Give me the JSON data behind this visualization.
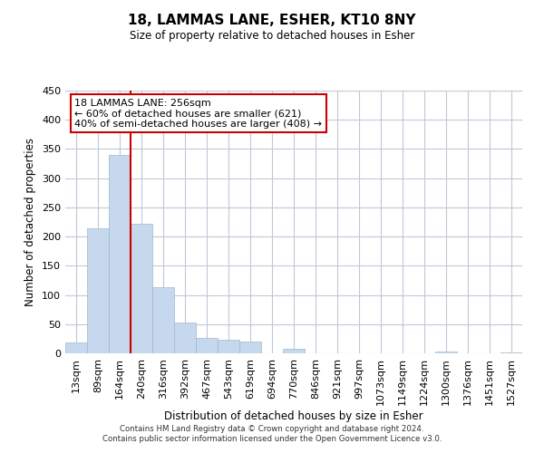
{
  "title": "18, LAMMAS LANE, ESHER, KT10 8NY",
  "subtitle": "Size of property relative to detached houses in Esher",
  "xlabel": "Distribution of detached houses by size in Esher",
  "ylabel": "Number of detached properties",
  "bar_labels": [
    "13sqm",
    "89sqm",
    "164sqm",
    "240sqm",
    "316sqm",
    "392sqm",
    "467sqm",
    "543sqm",
    "619sqm",
    "694sqm",
    "770sqm",
    "846sqm",
    "921sqm",
    "997sqm",
    "1073sqm",
    "1149sqm",
    "1224sqm",
    "1300sqm",
    "1376sqm",
    "1451sqm",
    "1527sqm"
  ],
  "bar_values": [
    18,
    214,
    340,
    222,
    113,
    53,
    26,
    24,
    20,
    0,
    7,
    0,
    0,
    0,
    0,
    0,
    0,
    3,
    0,
    0,
    2
  ],
  "bar_color": "#c5d8ed",
  "bar_edge_color": "#a0b8cc",
  "vline_x": 3,
  "vline_color": "#cc0000",
  "annotation_text": "18 LAMMAS LANE: 256sqm\n← 60% of detached houses are smaller (621)\n40% of semi-detached houses are larger (408) →",
  "annotation_box_color": "#ffffff",
  "annotation_box_edge_color": "#cc0000",
  "ylim": [
    0,
    450
  ],
  "yticks": [
    0,
    50,
    100,
    150,
    200,
    250,
    300,
    350,
    400,
    450
  ],
  "background_color": "#ffffff",
  "grid_color": "#c0c8d8",
  "footer_line1": "Contains HM Land Registry data © Crown copyright and database right 2024.",
  "footer_line2": "Contains public sector information licensed under the Open Government Licence v3.0."
}
